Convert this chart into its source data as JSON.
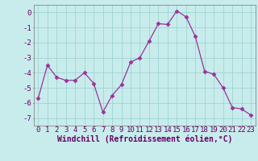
{
  "x": [
    0,
    1,
    2,
    3,
    4,
    5,
    6,
    7,
    8,
    9,
    10,
    11,
    12,
    13,
    14,
    15,
    16,
    17,
    18,
    19,
    20,
    21,
    22,
    23
  ],
  "y": [
    -5.7,
    -3.5,
    -4.3,
    -4.5,
    -4.5,
    -4.0,
    -4.7,
    -6.6,
    -5.5,
    -4.8,
    -3.3,
    -3.0,
    -1.9,
    -0.75,
    -0.8,
    0.1,
    -0.3,
    -1.6,
    -3.9,
    -4.1,
    -5.0,
    -6.3,
    -6.4,
    -6.8
  ],
  "line_color": "#993399",
  "marker": "D",
  "marker_size": 2.5,
  "bg_color": "#c8ecec",
  "grid_color": "#a0d4d4",
  "xlabel": "Windchill (Refroidissement éolien,°C)",
  "ylim": [
    -7.5,
    0.5
  ],
  "xlim": [
    -0.5,
    23.5
  ],
  "yticks": [
    0,
    -1,
    -2,
    -3,
    -4,
    -5,
    -6,
    -7
  ],
  "xticks": [
    0,
    1,
    2,
    3,
    4,
    5,
    6,
    7,
    8,
    9,
    10,
    11,
    12,
    13,
    14,
    15,
    16,
    17,
    18,
    19,
    20,
    21,
    22,
    23
  ],
  "xlabel_fontsize": 7,
  "tick_fontsize": 6.5,
  "label_color": "#660066",
  "axis_color": "#660066",
  "spine_color": "#888888"
}
